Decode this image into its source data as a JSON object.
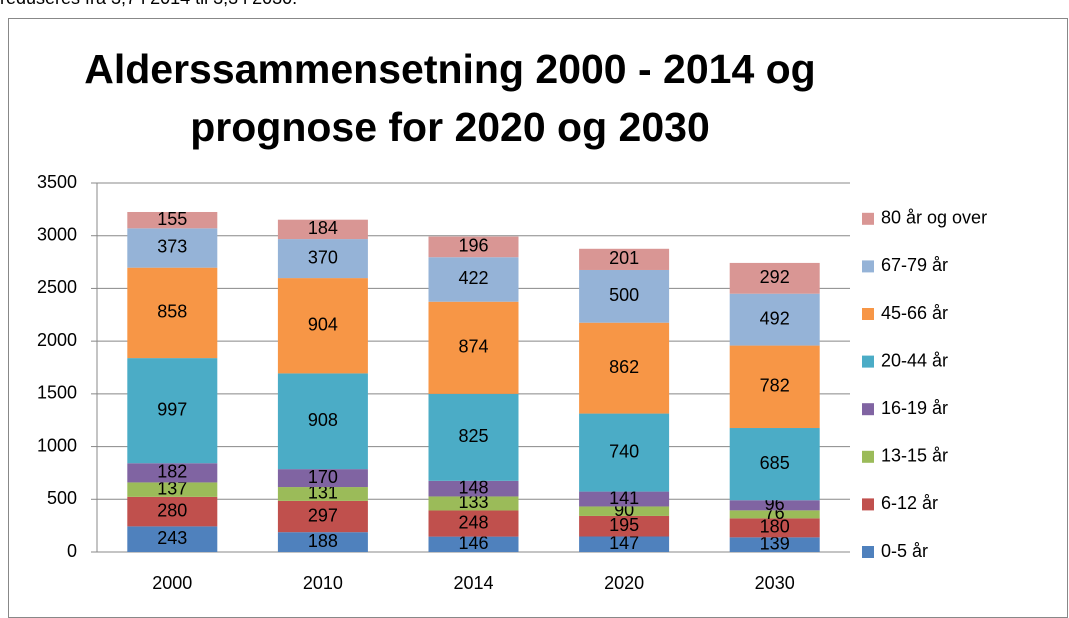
{
  "header_text": "reduseres fra 3,7 i 2014 til 3,3 i 2030.",
  "chart_data": {
    "type": "stacked_bar",
    "title": "Alderssammensetning 2000 - 2014 og prognose for 2020 og 2030",
    "categories": [
      "2000",
      "2010",
      "2014",
      "2020",
      "2030"
    ],
    "series": [
      {
        "name": "0-5 år",
        "color": "#4f81bd",
        "values": [
          243,
          188,
          146,
          147,
          139
        ]
      },
      {
        "name": "6-12 år",
        "color": "#c0504d",
        "values": [
          280,
          297,
          248,
          195,
          180
        ]
      },
      {
        "name": "13-15 år",
        "color": "#9bbb59",
        "values": [
          137,
          131,
          133,
          90,
          76
        ]
      },
      {
        "name": "16-19 år",
        "color": "#8064a2",
        "values": [
          182,
          170,
          148,
          141,
          96
        ]
      },
      {
        "name": "20-44 år",
        "color": "#4bacc6",
        "values": [
          997,
          908,
          825,
          740,
          685
        ]
      },
      {
        "name": "45-66 år",
        "color": "#f79646",
        "values": [
          858,
          904,
          874,
          862,
          782
        ]
      },
      {
        "name": "67-79 år",
        "color": "#95b3d7",
        "values": [
          373,
          370,
          422,
          500,
          492
        ]
      },
      {
        "name": "80 år og over",
        "color": "#d99694",
        "values": [
          155,
          184,
          196,
          201,
          292
        ]
      }
    ],
    "ylim": [
      0,
      3500
    ],
    "yticks": [
      0,
      500,
      1000,
      1500,
      2000,
      2500,
      3000,
      3500
    ],
    "grid": true,
    "legend": "right"
  }
}
